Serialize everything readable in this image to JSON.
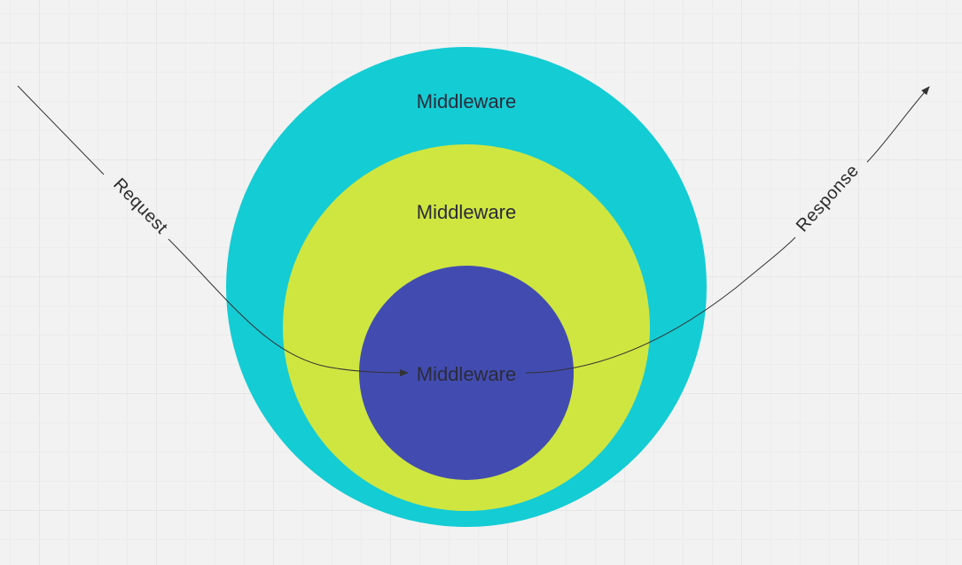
{
  "diagram": {
    "outer_label": "Middleware",
    "middle_label": "Middleware",
    "inner_label": "Middleware",
    "request_label": "Request",
    "response_label": "Response"
  },
  "colors": {
    "background": "#f2f2f2",
    "outer_circle": "#14ccd4",
    "middle_circle": "#cfe640",
    "inner_circle": "#424cb0",
    "arrow": "#333333"
  }
}
